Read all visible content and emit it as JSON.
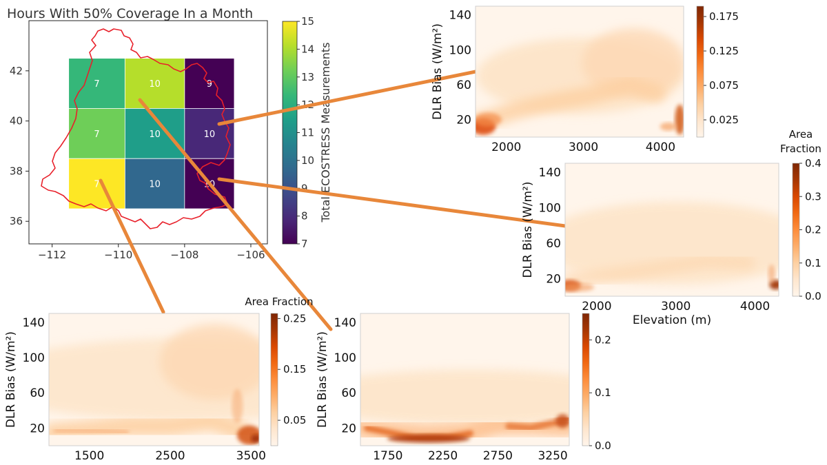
{
  "colors": {
    "region_outline": "#e8202a",
    "connector": "#e8873a",
    "viridis": [
      "#440154",
      "#482878",
      "#3e4989",
      "#31688e",
      "#26828e",
      "#1f9e89",
      "#35b779",
      "#6ece58",
      "#b5de2b",
      "#fde725"
    ],
    "oranges": [
      "#fff5eb",
      "#fee6ce",
      "#fdd0a2",
      "#fdae6b",
      "#fd8d3c",
      "#f16913",
      "#d94801",
      "#a63603",
      "#7f2704"
    ]
  },
  "chart_data": [
    {
      "id": "map",
      "type": "heatmap",
      "title": "Hours With 50% Coverage In a Month",
      "xlabel": "",
      "ylabel": "",
      "xlim": [
        -112.7,
        -105.5
      ],
      "ylim": [
        35.1,
        44.0
      ],
      "xticks": [
        -112,
        -110,
        -108,
        -106
      ],
      "xtick_labels": [
        "−112",
        "−110",
        "−108",
        "−106"
      ],
      "yticks": [
        36,
        38,
        40,
        42
      ],
      "ytick_labels": [
        "36",
        "38",
        "40",
        "42"
      ],
      "cells": [
        {
          "lon": [
            -111.5,
            -109.8
          ],
          "lat": [
            40.5,
            42.5
          ],
          "value": 12,
          "label": "7"
        },
        {
          "lon": [
            -109.8,
            -108.0
          ],
          "lat": [
            40.5,
            42.5
          ],
          "value": 14,
          "label": "10"
        },
        {
          "lon": [
            -108.0,
            -106.5
          ],
          "lat": [
            40.5,
            42.5
          ],
          "value": 7,
          "label": "9"
        },
        {
          "lon": [
            -111.5,
            -109.8
          ],
          "lat": [
            38.5,
            40.5
          ],
          "value": 12.8,
          "label": "7"
        },
        {
          "lon": [
            -109.8,
            -108.0
          ],
          "lat": [
            38.5,
            40.5
          ],
          "value": 11,
          "label": "10"
        },
        {
          "lon": [
            -108.0,
            -106.5
          ],
          "lat": [
            38.5,
            40.5
          ],
          "value": 8.2,
          "label": "10"
        },
        {
          "lon": [
            -111.5,
            -109.8
          ],
          "lat": [
            36.5,
            38.5
          ],
          "value": 15,
          "label": "7"
        },
        {
          "lon": [
            -109.8,
            -108.0
          ],
          "lat": [
            36.5,
            38.5
          ],
          "value": 10,
          "label": "10"
        },
        {
          "lon": [
            -108.0,
            -106.5
          ],
          "lat": [
            36.5,
            38.5
          ],
          "value": 7.3,
          "label": "10"
        }
      ],
      "colorbar": {
        "label": "Total ECOSTRESS Measurements",
        "range": [
          7,
          15
        ],
        "ticks": [
          "7",
          "8",
          "9",
          "10",
          "11",
          "12",
          "13",
          "14",
          "15"
        ]
      }
    },
    {
      "id": "panel_top",
      "type": "heatmap",
      "ylabel": "DLR Bias (W/m²)",
      "xlabel": "",
      "xlim": [
        1600,
        4300
      ],
      "ylim": [
        0,
        150
      ],
      "xticks": [
        2000,
        3000,
        4000
      ],
      "xtick_labels": [
        "2000",
        "3000",
        "4000"
      ],
      "yticks": [
        20,
        60,
        100,
        140
      ],
      "ytick_labels": [
        "20",
        "60",
        "100",
        "140"
      ],
      "colorbar": {
        "title": "",
        "range": [
          0,
          0.19
        ],
        "ticks": [
          0.025,
          0.075,
          0.125,
          0.175
        ],
        "tick_labels": [
          "0.025",
          "0.075",
          "0.125",
          "0.175"
        ]
      }
    },
    {
      "id": "panel_right",
      "type": "heatmap",
      "ylabel": "DLR Bias (W/m²)",
      "xlabel": "Elevation (m)",
      "xlim": [
        1600,
        4300
      ],
      "ylim": [
        0,
        150
      ],
      "xticks": [
        2000,
        3000,
        4000
      ],
      "xtick_labels": [
        "2000",
        "3000",
        "4000"
      ],
      "yticks": [
        20,
        60,
        100,
        140
      ],
      "ytick_labels": [
        "20",
        "60",
        "100",
        "140"
      ],
      "colorbar": {
        "title": "Area\nFraction",
        "range": [
          0,
          0.4
        ],
        "ticks": [
          0.0,
          0.1,
          0.2,
          0.3,
          0.4
        ],
        "tick_labels": [
          "0.0",
          "0.1",
          "0.2",
          "0.3",
          "0.4"
        ]
      }
    },
    {
      "id": "panel_bl",
      "type": "heatmap",
      "ylabel": "DLR Bias (W/m²)",
      "xlabel": "",
      "xlim": [
        1000,
        3600
      ],
      "ylim": [
        0,
        150
      ],
      "xticks": [
        1500,
        2500,
        3500
      ],
      "xtick_labels": [
        "1500",
        "2500",
        "3500"
      ],
      "yticks": [
        20,
        60,
        100,
        140
      ],
      "ytick_labels": [
        "20",
        "60",
        "100",
        "140"
      ],
      "colorbar": {
        "title": "Area Fraction",
        "range": [
          0,
          0.26
        ],
        "ticks": [
          0.05,
          0.15,
          0.25
        ],
        "tick_labels": [
          "0.05",
          "0.15",
          "0.25"
        ]
      }
    },
    {
      "id": "panel_bm",
      "type": "heatmap",
      "ylabel": "DLR Bias (W/m²)",
      "xlabel": "",
      "xlim": [
        1500,
        3400
      ],
      "ylim": [
        0,
        150
      ],
      "xticks": [
        1750,
        2250,
        2750,
        3250
      ],
      "xtick_labels": [
        "1750",
        "2250",
        "2750",
        "3250"
      ],
      "yticks": [
        20,
        60,
        100,
        140
      ],
      "ytick_labels": [
        "20",
        "60",
        "100",
        "140"
      ],
      "colorbar": {
        "title": "",
        "range": [
          0,
          0.25
        ],
        "ticks": [
          0.0,
          0.1,
          0.2
        ],
        "tick_labels": [
          "0.0",
          "0.1",
          "0.2"
        ]
      }
    }
  ]
}
